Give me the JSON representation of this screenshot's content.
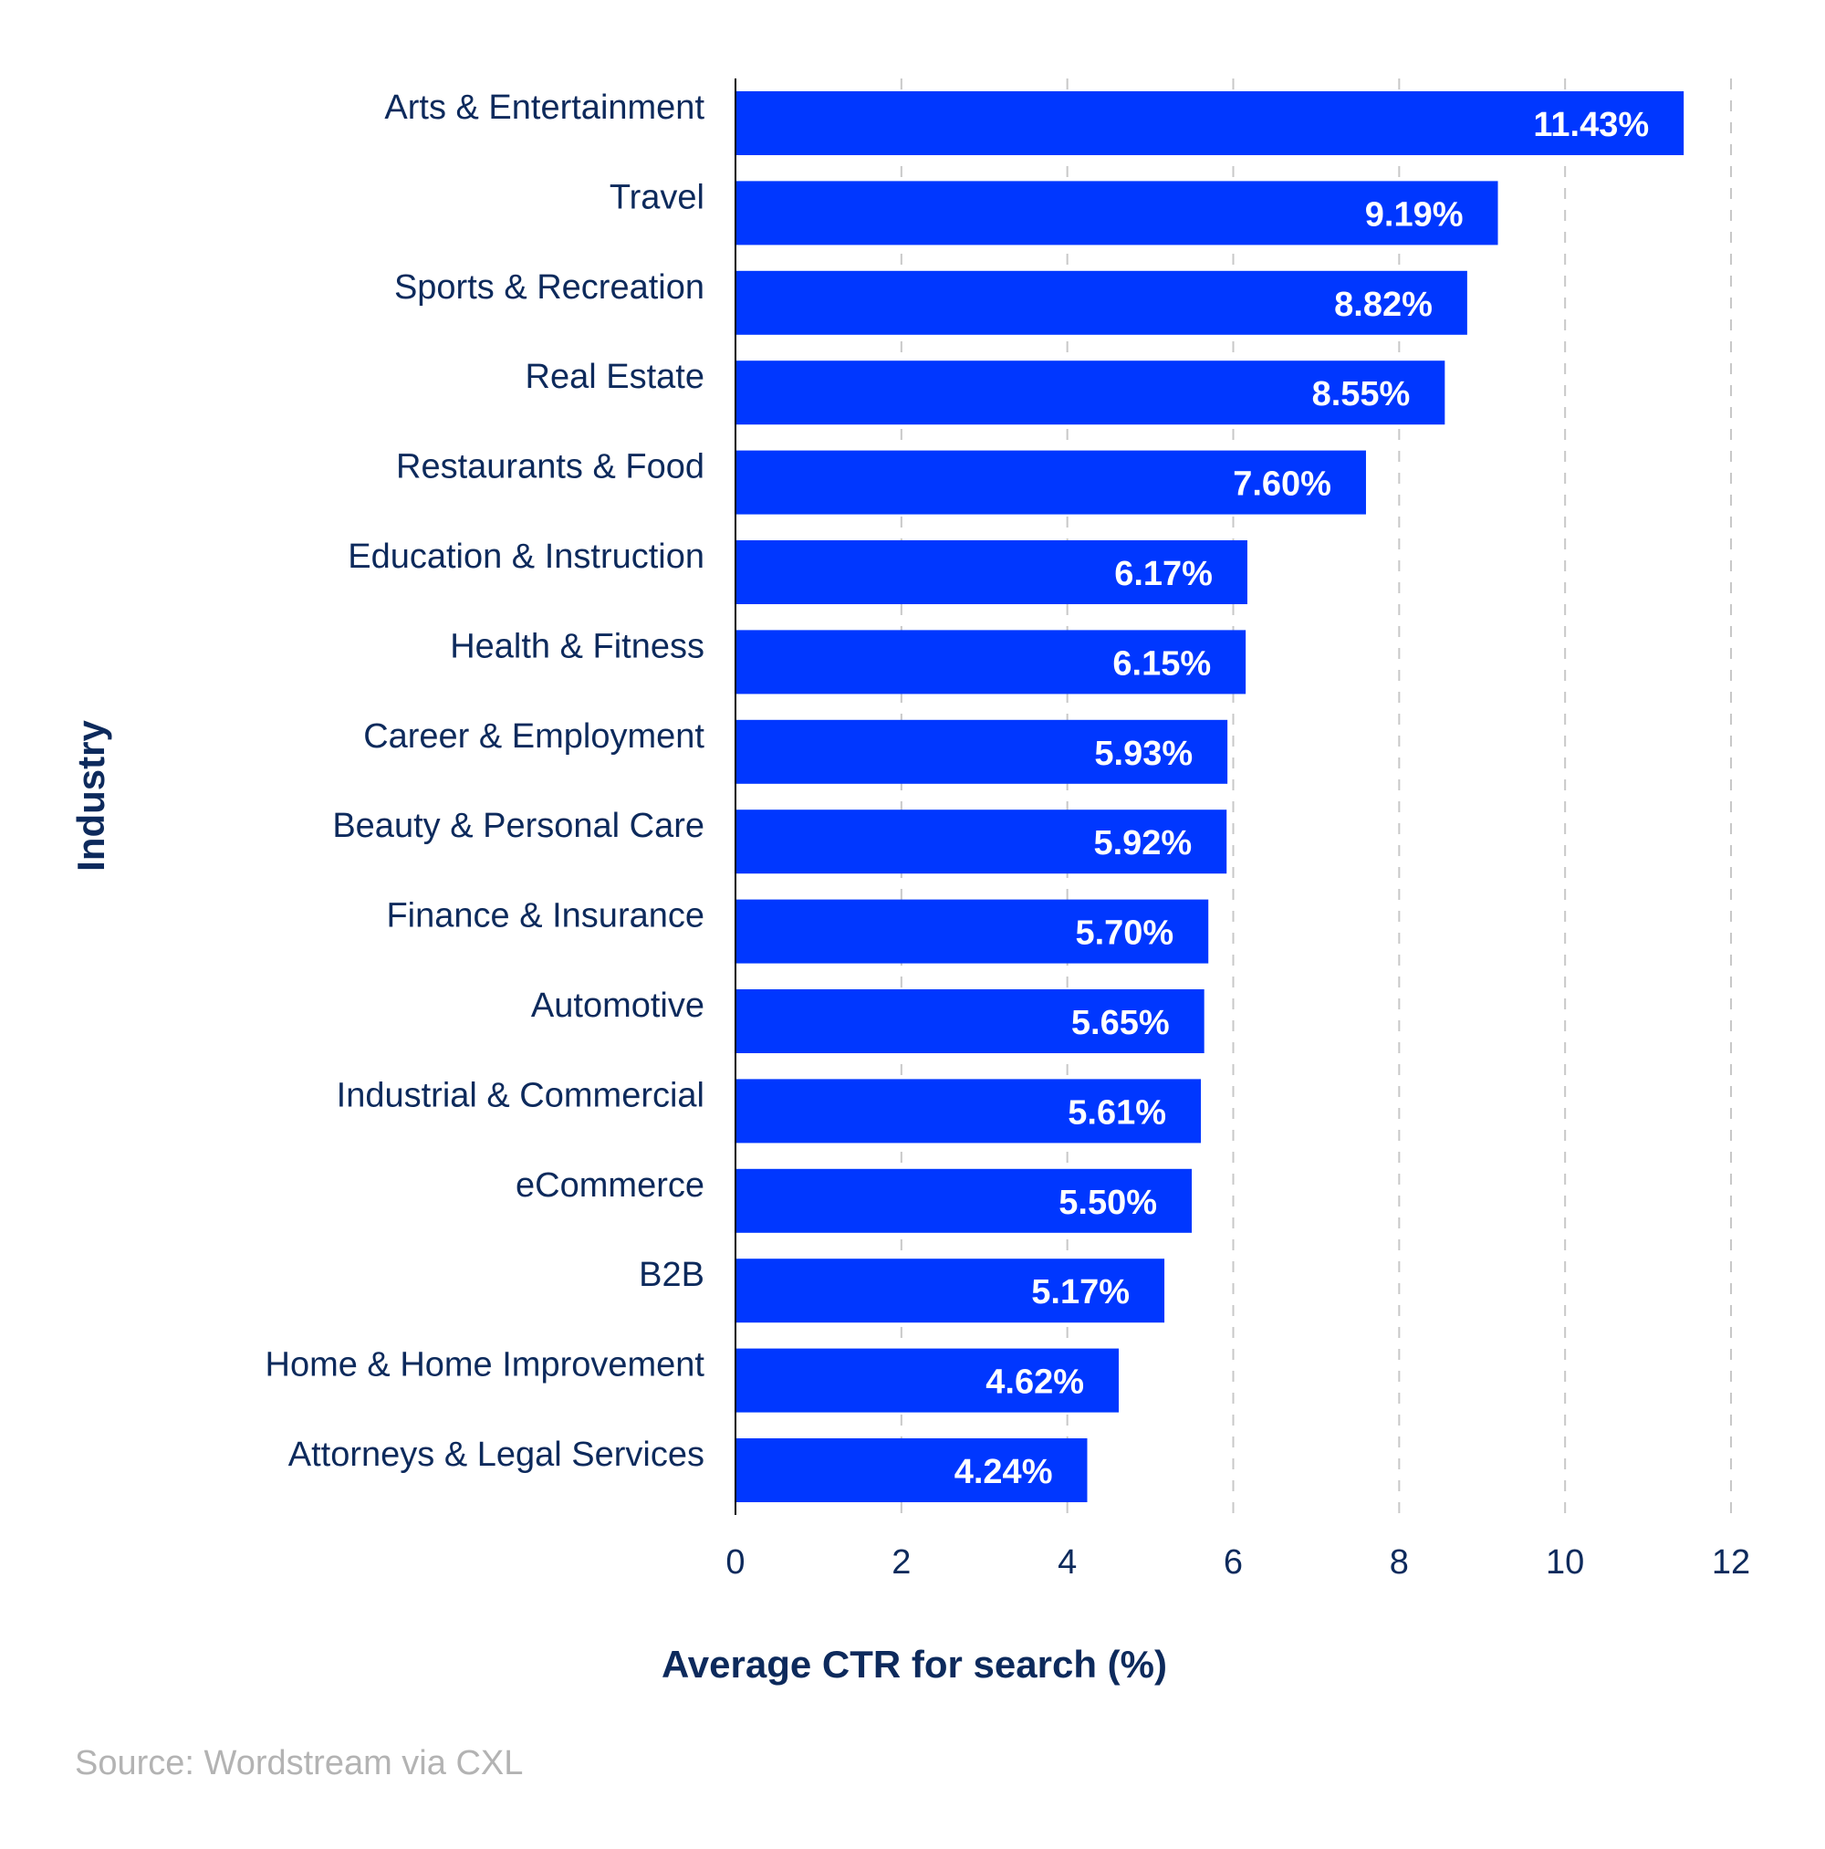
{
  "chart_data": {
    "type": "bar",
    "orientation": "horizontal",
    "categories": [
      "Arts & Entertainment",
      "Travel",
      "Sports & Recreation",
      "Real Estate",
      "Restaurants & Food",
      "Education & Instruction",
      "Health & Fitness",
      "Career & Employment",
      "Beauty & Personal Care",
      "Finance & Insurance",
      "Automotive",
      "Industrial & Commercial",
      "eCommerce",
      "B2B",
      "Home & Home Improvement",
      "Attorneys & Legal Services"
    ],
    "values": [
      11.43,
      9.19,
      8.82,
      8.55,
      7.6,
      6.17,
      6.15,
      5.93,
      5.92,
      5.7,
      5.65,
      5.61,
      5.5,
      5.17,
      4.62,
      4.24
    ],
    "value_labels": [
      "11.43%",
      "9.19%",
      "8.82%",
      "8.55%",
      "7.60%",
      "6.17%",
      "6.15%",
      "5.93%",
      "5.92%",
      "5.70%",
      "5.65%",
      "5.61%",
      "5.50%",
      "5.17%",
      "4.62%",
      "4.24%"
    ],
    "xlabel": "Average CTR for search (%)",
    "ylabel": "Industry",
    "xlim": [
      0,
      12
    ],
    "xticks": [
      "0",
      "2",
      "4",
      "6",
      "8",
      "10",
      "12"
    ],
    "grid": "vertical dashed",
    "bar_color": "#0037ff",
    "text_color": "#0d2a5c"
  },
  "source": "Source: Wordstream via CXL"
}
